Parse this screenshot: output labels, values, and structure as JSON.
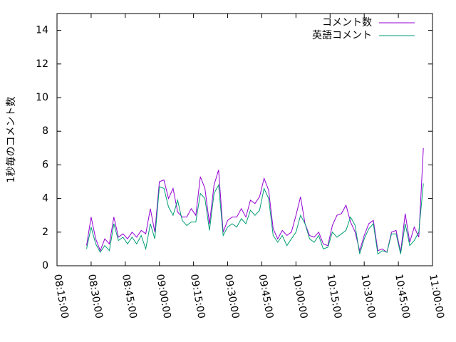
{
  "chart_data": {
    "type": "line",
    "ylabel": "1秒毎のコメント数",
    "x": [
      "08:28:00",
      "08:30:00",
      "08:32:00",
      "08:34:00",
      "08:36:00",
      "08:38:00",
      "08:40:00",
      "08:42:00",
      "08:44:00",
      "08:46:00",
      "08:48:00",
      "08:50:00",
      "08:52:00",
      "08:54:00",
      "08:56:00",
      "08:58:00",
      "09:00:00",
      "09:02:00",
      "09:04:00",
      "09:06:00",
      "09:08:00",
      "09:10:00",
      "09:12:00",
      "09:14:00",
      "09:16:00",
      "09:18:00",
      "09:20:00",
      "09:22:00",
      "09:24:00",
      "09:26:00",
      "09:28:00",
      "09:30:00",
      "09:32:00",
      "09:34:00",
      "09:36:00",
      "09:38:00",
      "09:40:00",
      "09:42:00",
      "09:44:00",
      "09:46:00",
      "09:48:00",
      "09:50:00",
      "09:52:00",
      "09:54:00",
      "09:56:00",
      "09:58:00",
      "10:00:00",
      "10:02:00",
      "10:04:00",
      "10:06:00",
      "10:08:00",
      "10:10:00",
      "10:12:00",
      "10:14:00",
      "10:16:00",
      "10:18:00",
      "10:20:00",
      "10:22:00",
      "10:24:00",
      "10:26:00",
      "10:28:00",
      "10:30:00",
      "10:32:00",
      "10:34:00",
      "10:36:00",
      "10:38:00",
      "10:40:00",
      "10:42:00",
      "10:44:00",
      "10:46:00",
      "10:48:00",
      "10:50:00",
      "10:52:00",
      "10:54:00",
      "10:56:00"
    ],
    "series": [
      {
        "name": "コメント数",
        "color": "#9400d3",
        "values": [
          1.2,
          2.9,
          1.6,
          0.9,
          1.6,
          1.3,
          2.9,
          1.7,
          1.9,
          1.6,
          2.0,
          1.7,
          2.1,
          1.9,
          3.4,
          2.0,
          5.0,
          5.1,
          4.0,
          4.6,
          3.2,
          2.9,
          2.9,
          3.4,
          3.0,
          5.3,
          4.6,
          2.5,
          4.8,
          5.7,
          2.0,
          2.7,
          2.9,
          2.9,
          3.4,
          2.9,
          3.9,
          3.7,
          4.1,
          5.2,
          4.5,
          2.2,
          1.6,
          2.1,
          1.8,
          2.0,
          3.0,
          4.1,
          2.5,
          1.8,
          1.7,
          2.0,
          1.3,
          1.2,
          2.4,
          3.0,
          3.1,
          3.6,
          2.6,
          2.0,
          0.9,
          1.8,
          2.5,
          2.7,
          0.9,
          1.0,
          0.8,
          2.0,
          2.1,
          0.8,
          3.1,
          1.4,
          2.3,
          1.7,
          7.0
        ]
      },
      {
        "name": "英語コメント",
        "color": "#009e73",
        "values": [
          1.0,
          2.3,
          1.3,
          0.8,
          1.2,
          0.9,
          2.5,
          1.5,
          1.7,
          1.3,
          1.7,
          1.3,
          1.8,
          1.0,
          2.5,
          1.6,
          4.7,
          4.6,
          3.5,
          3.0,
          3.9,
          2.7,
          2.4,
          2.6,
          2.6,
          4.3,
          4.0,
          2.1,
          4.3,
          4.8,
          1.8,
          2.3,
          2.5,
          2.3,
          2.8,
          2.5,
          3.3,
          3.0,
          3.3,
          4.6,
          4.0,
          1.8,
          1.4,
          1.8,
          1.2,
          1.6,
          2.0,
          3.0,
          2.5,
          1.6,
          1.4,
          1.8,
          1.0,
          1.1,
          2.0,
          1.7,
          1.9,
          2.1,
          2.9,
          2.4,
          0.7,
          1.6,
          2.2,
          2.5,
          0.7,
          0.9,
          0.8,
          1.9,
          1.9,
          0.7,
          2.5,
          1.2,
          1.5,
          2.0,
          4.9
        ]
      }
    ],
    "xlim": [
      "08:15:00",
      "11:00:00"
    ],
    "xticks": [
      "08:15:00",
      "08:30:00",
      "08:45:00",
      "09:00:00",
      "09:15:00",
      "09:30:00",
      "09:45:00",
      "10:00:00",
      "10:15:00",
      "10:30:00",
      "10:45:00",
      "11:00:00"
    ],
    "ylim": [
      0,
      15
    ],
    "yticks": [
      0,
      2,
      4,
      6,
      8,
      10,
      12,
      14
    ],
    "grid": false,
    "legend": "top-right"
  }
}
